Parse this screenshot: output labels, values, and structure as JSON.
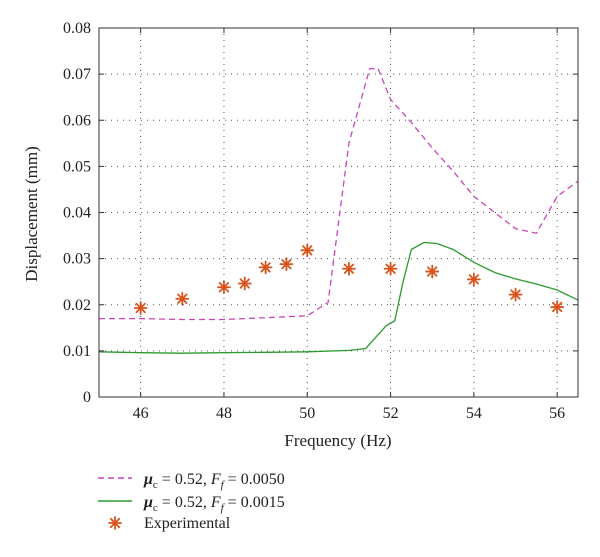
{
  "chart_data": {
    "type": "line",
    "xlabel": "Frequency (Hz)",
    "ylabel": "Displacement (mm)",
    "xlim": [
      45,
      56.5
    ],
    "ylim": [
      0,
      0.08
    ],
    "xticks": [
      46,
      48,
      50,
      52,
      54,
      56
    ],
    "yticks": [
      0,
      0.01,
      0.02,
      0.03,
      0.04,
      0.05,
      0.06,
      0.07,
      0.08
    ],
    "ytick_labels": [
      "0",
      "0.01",
      "0.02",
      "0.03",
      "0.04",
      "0.05",
      "0.06",
      "0.07",
      "0.08"
    ],
    "grid": true,
    "legend_position": "bottom-left (below plot)",
    "series": [
      {
        "name": "μc = 0.52, Ff = 0.0050",
        "style": "dashed",
        "color": "#cc44bb",
        "x": [
          45,
          46,
          47,
          48,
          49,
          50,
          50.5,
          51,
          51.5,
          51.7,
          52,
          52.5,
          53,
          53.5,
          54,
          54.5,
          55,
          55.5,
          56,
          56.5
        ],
        "y": [
          0.017,
          0.017,
          0.0168,
          0.0168,
          0.0172,
          0.0176,
          0.0205,
          0.055,
          0.0712,
          0.0712,
          0.0645,
          0.0595,
          0.054,
          0.049,
          0.0435,
          0.04,
          0.0365,
          0.0355,
          0.0435,
          0.0468
        ]
      },
      {
        "name": "μc = 0.52, Ff = 0.0015",
        "style": "solid",
        "color": "#2e9a2e",
        "x": [
          45,
          46,
          47,
          48,
          49,
          50,
          51,
          51.4,
          51.7,
          51.9,
          52.1,
          52.3,
          52.5,
          52.8,
          53.1,
          53.5,
          54,
          54.5,
          55,
          55.5,
          56,
          56.5
        ],
        "y": [
          0.0098,
          0.0096,
          0.0095,
          0.0096,
          0.0097,
          0.0098,
          0.0101,
          0.0105,
          0.0135,
          0.0155,
          0.0165,
          0.025,
          0.032,
          0.0335,
          0.0333,
          0.032,
          0.0292,
          0.027,
          0.0256,
          0.0245,
          0.0232,
          0.021
        ]
      },
      {
        "name": "Experimental",
        "style": "markers",
        "marker": "asterisk",
        "color": "#d9541c",
        "x": [
          46,
          47,
          48,
          48.5,
          49,
          49.5,
          50,
          51,
          52,
          53,
          54,
          55,
          56
        ],
        "y": [
          0.0193,
          0.0213,
          0.0238,
          0.0246,
          0.0281,
          0.0288,
          0.0318,
          0.0278,
          0.0278,
          0.0272,
          0.0255,
          0.0222,
          0.0195
        ]
      }
    ]
  },
  "legend": {
    "line1": {
      "mu": "μ",
      "mu_sub": "c",
      "mid": " = 0.52, ",
      "F": "F",
      "F_sub": "f",
      "tail": " = 0.0050"
    },
    "line2": {
      "mu": "μ",
      "mu_sub": "c",
      "mid": " = 0.52, ",
      "F": "F",
      "F_sub": "f",
      "tail": " = 0.0015"
    },
    "line3": {
      "text": "Experimental"
    }
  }
}
